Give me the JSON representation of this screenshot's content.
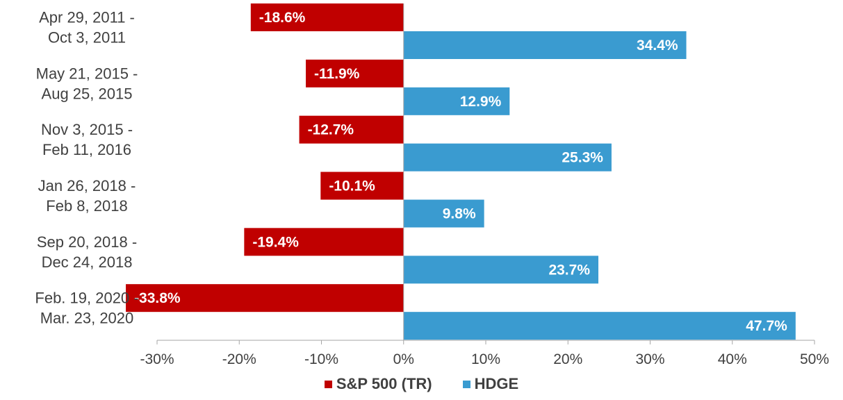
{
  "chart_data": {
    "type": "bar",
    "orientation": "horizontal",
    "categories": [
      [
        "Apr 29, 2011 -",
        "Oct 3, 2011"
      ],
      [
        "May 21, 2015 -",
        "Aug 25, 2015"
      ],
      [
        "Nov 3, 2015 -",
        "Feb 11, 2016"
      ],
      [
        "Jan 26, 2018 -",
        "Feb 8, 2018"
      ],
      [
        "Sep 20, 2018 -",
        "Dec 24, 2018"
      ],
      [
        "Feb. 19, 2020 -",
        "Mar. 23, 2020"
      ]
    ],
    "series": [
      {
        "name": "S&P 500 (TR)",
        "color": "#C00000",
        "values": [
          -18.6,
          -11.9,
          -12.7,
          -10.1,
          -19.4,
          -33.8
        ],
        "labels": [
          "-18.6%",
          "-11.9%",
          "-12.7%",
          "-10.1%",
          "-19.4%",
          "-33.8%"
        ]
      },
      {
        "name": "HDGE",
        "color": "#3A9BD0",
        "values": [
          34.4,
          12.9,
          25.3,
          9.8,
          23.7,
          47.7
        ],
        "labels": [
          "34.4%",
          "12.9%",
          "25.3%",
          "9.8%",
          "23.7%",
          "47.7%"
        ]
      }
    ],
    "xlim": [
      -30,
      50
    ],
    "xticks": [
      -30,
      -20,
      -10,
      0,
      10,
      20,
      30,
      40,
      50
    ],
    "xtick_labels": [
      "-30%",
      "-20%",
      "-10%",
      "0%",
      "10%",
      "20%",
      "30%",
      "40%",
      "50%"
    ],
    "grid": false,
    "legend_position": "bottom-center"
  },
  "legend": {
    "sp500_label": "S&P 500 (TR)",
    "hdge_label": "HDGE"
  }
}
